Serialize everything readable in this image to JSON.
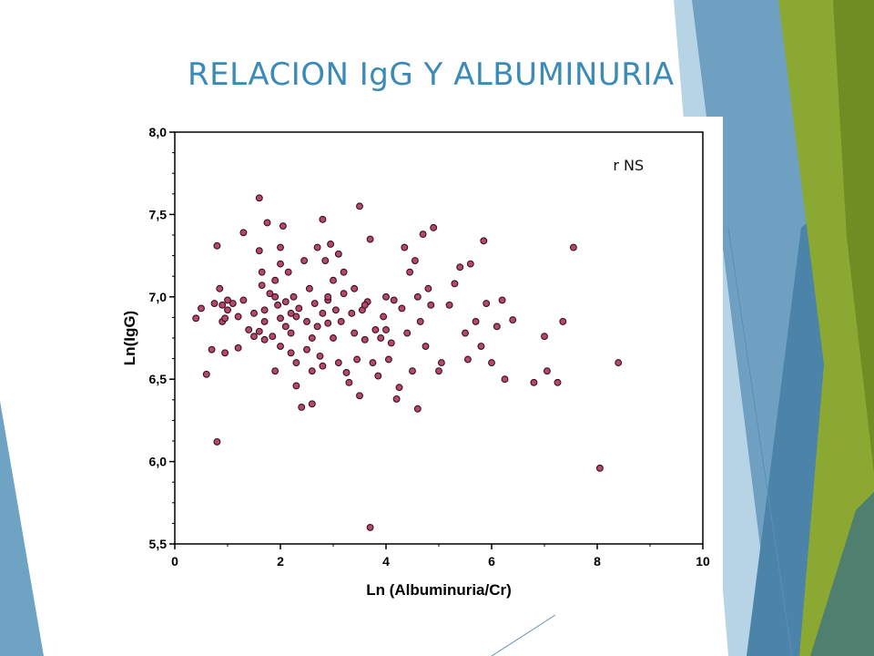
{
  "slide": {
    "title": "RELACION IgG Y ALBUMINURIA"
  },
  "colors": {
    "title": "#3b8ab8",
    "marker_fill": "#b5486c",
    "marker_stroke": "#3a1020",
    "deco_blue": "#6ea3c4",
    "deco_green": "#8aa832"
  },
  "chart_data": {
    "type": "scatter",
    "xlabel": "Ln (Albuminuria/Cr)",
    "ylabel": "Ln(IgG)",
    "xlim": [
      0,
      10
    ],
    "ylim": [
      5.5,
      8.0
    ],
    "x_ticks": [
      "0",
      "2",
      "4",
      "6",
      "8",
      "10"
    ],
    "y_ticks": [
      "5,5",
      "6,0",
      "6,5",
      "7,0",
      "7,5",
      "8,0"
    ],
    "grid": false,
    "annotation": "r NS",
    "points": [
      [
        0.4,
        6.87
      ],
      [
        0.5,
        6.93
      ],
      [
        0.6,
        6.53
      ],
      [
        0.7,
        6.68
      ],
      [
        0.75,
        6.96
      ],
      [
        0.8,
        6.12
      ],
      [
        0.8,
        7.31
      ],
      [
        0.85,
        7.05
      ],
      [
        0.9,
        6.85
      ],
      [
        0.9,
        6.95
      ],
      [
        0.95,
        6.66
      ],
      [
        0.95,
        6.87
      ],
      [
        1.0,
        6.92
      ],
      [
        1.0,
        6.98
      ],
      [
        1.1,
        6.96
      ],
      [
        1.2,
        6.88
      ],
      [
        1.3,
        6.98
      ],
      [
        1.3,
        7.39
      ],
      [
        1.4,
        6.8
      ],
      [
        1.5,
        6.76
      ],
      [
        1.5,
        6.9
      ],
      [
        1.6,
        6.79
      ],
      [
        1.6,
        7.6
      ],
      [
        1.6,
        7.28
      ],
      [
        1.65,
        7.15
      ],
      [
        1.65,
        7.07
      ],
      [
        1.7,
        6.92
      ],
      [
        1.7,
        6.85
      ],
      [
        1.7,
        6.74
      ],
      [
        1.75,
        7.45
      ],
      [
        1.8,
        7.02
      ],
      [
        1.85,
        6.76
      ],
      [
        1.9,
        6.55
      ],
      [
        1.9,
        7.0
      ],
      [
        1.95,
        6.95
      ],
      [
        2.0,
        6.87
      ],
      [
        2.0,
        6.7
      ],
      [
        2.0,
        7.2
      ],
      [
        2.0,
        7.3
      ],
      [
        2.05,
        7.43
      ],
      [
        2.1,
        6.97
      ],
      [
        2.1,
        6.82
      ],
      [
        2.15,
        7.15
      ],
      [
        2.2,
        6.9
      ],
      [
        2.2,
        6.66
      ],
      [
        2.2,
        6.78
      ],
      [
        2.25,
        7.0
      ],
      [
        2.3,
        6.46
      ],
      [
        2.3,
        6.6
      ],
      [
        2.35,
        6.93
      ],
      [
        2.4,
        6.33
      ],
      [
        2.45,
        7.22
      ],
      [
        2.5,
        6.85
      ],
      [
        2.5,
        6.68
      ],
      [
        2.55,
        7.05
      ],
      [
        2.6,
        6.55
      ],
      [
        2.6,
        6.35
      ],
      [
        2.65,
        6.96
      ],
      [
        2.7,
        6.82
      ],
      [
        2.7,
        7.3
      ],
      [
        2.75,
        6.64
      ],
      [
        2.8,
        6.9
      ],
      [
        2.8,
        7.47
      ],
      [
        2.8,
        6.58
      ],
      [
        2.85,
        7.22
      ],
      [
        2.9,
        6.84
      ],
      [
        2.9,
        6.98
      ],
      [
        2.95,
        7.32
      ],
      [
        3.0,
        6.75
      ],
      [
        3.0,
        7.1
      ],
      [
        3.05,
        6.92
      ],
      [
        3.1,
        7.26
      ],
      [
        3.1,
        6.6
      ],
      [
        3.15,
        6.85
      ],
      [
        3.2,
        7.02
      ],
      [
        3.25,
        6.54
      ],
      [
        3.3,
        6.48
      ],
      [
        3.35,
        6.9
      ],
      [
        3.4,
        6.78
      ],
      [
        3.4,
        7.05
      ],
      [
        3.45,
        6.62
      ],
      [
        3.5,
        7.55
      ],
      [
        3.5,
        6.4
      ],
      [
        3.55,
        6.92
      ],
      [
        3.6,
        6.74
      ],
      [
        3.65,
        6.97
      ],
      [
        3.7,
        7.35
      ],
      [
        3.75,
        6.6
      ],
      [
        3.8,
        6.8
      ],
      [
        3.85,
        6.52
      ],
      [
        3.9,
        6.75
      ],
      [
        3.95,
        6.88
      ],
      [
        4.0,
        7.0
      ],
      [
        4.05,
        6.62
      ],
      [
        4.1,
        6.72
      ],
      [
        4.15,
        6.98
      ],
      [
        4.2,
        6.38
      ],
      [
        4.25,
        6.45
      ],
      [
        4.3,
        6.93
      ],
      [
        4.35,
        7.3
      ],
      [
        4.4,
        6.78
      ],
      [
        4.45,
        7.15
      ],
      [
        4.5,
        6.55
      ],
      [
        4.55,
        7.22
      ],
      [
        4.6,
        7.0
      ],
      [
        4.65,
        6.85
      ],
      [
        4.7,
        7.38
      ],
      [
        4.75,
        6.7
      ],
      [
        4.8,
        7.05
      ],
      [
        4.85,
        6.95
      ],
      [
        4.9,
        7.42
      ],
      [
        5.0,
        6.55
      ],
      [
        5.05,
        6.6
      ],
      [
        5.2,
        6.95
      ],
      [
        5.3,
        7.08
      ],
      [
        5.4,
        7.18
      ],
      [
        5.5,
        6.78
      ],
      [
        5.55,
        6.62
      ],
      [
        5.6,
        7.2
      ],
      [
        5.7,
        6.85
      ],
      [
        5.8,
        6.7
      ],
      [
        5.85,
        7.34
      ],
      [
        5.9,
        6.96
      ],
      [
        6.0,
        6.6
      ],
      [
        6.1,
        6.82
      ],
      [
        6.2,
        6.98
      ],
      [
        6.25,
        6.5
      ],
      [
        6.4,
        6.86
      ],
      [
        6.8,
        6.48
      ],
      [
        7.0,
        6.76
      ],
      [
        7.05,
        6.55
      ],
      [
        7.25,
        6.48
      ],
      [
        7.35,
        6.85
      ],
      [
        7.55,
        7.3
      ],
      [
        8.05,
        5.96
      ],
      [
        8.4,
        6.6
      ],
      [
        3.7,
        5.6
      ],
      [
        4.6,
        6.32
      ],
      [
        1.2,
        6.69
      ],
      [
        2.6,
        6.75
      ],
      [
        3.2,
        7.15
      ],
      [
        1.9,
        7.1
      ],
      [
        2.3,
        6.88
      ],
      [
        4.0,
        6.8
      ],
      [
        3.6,
        6.95
      ],
      [
        2.9,
        7.0
      ]
    ]
  }
}
